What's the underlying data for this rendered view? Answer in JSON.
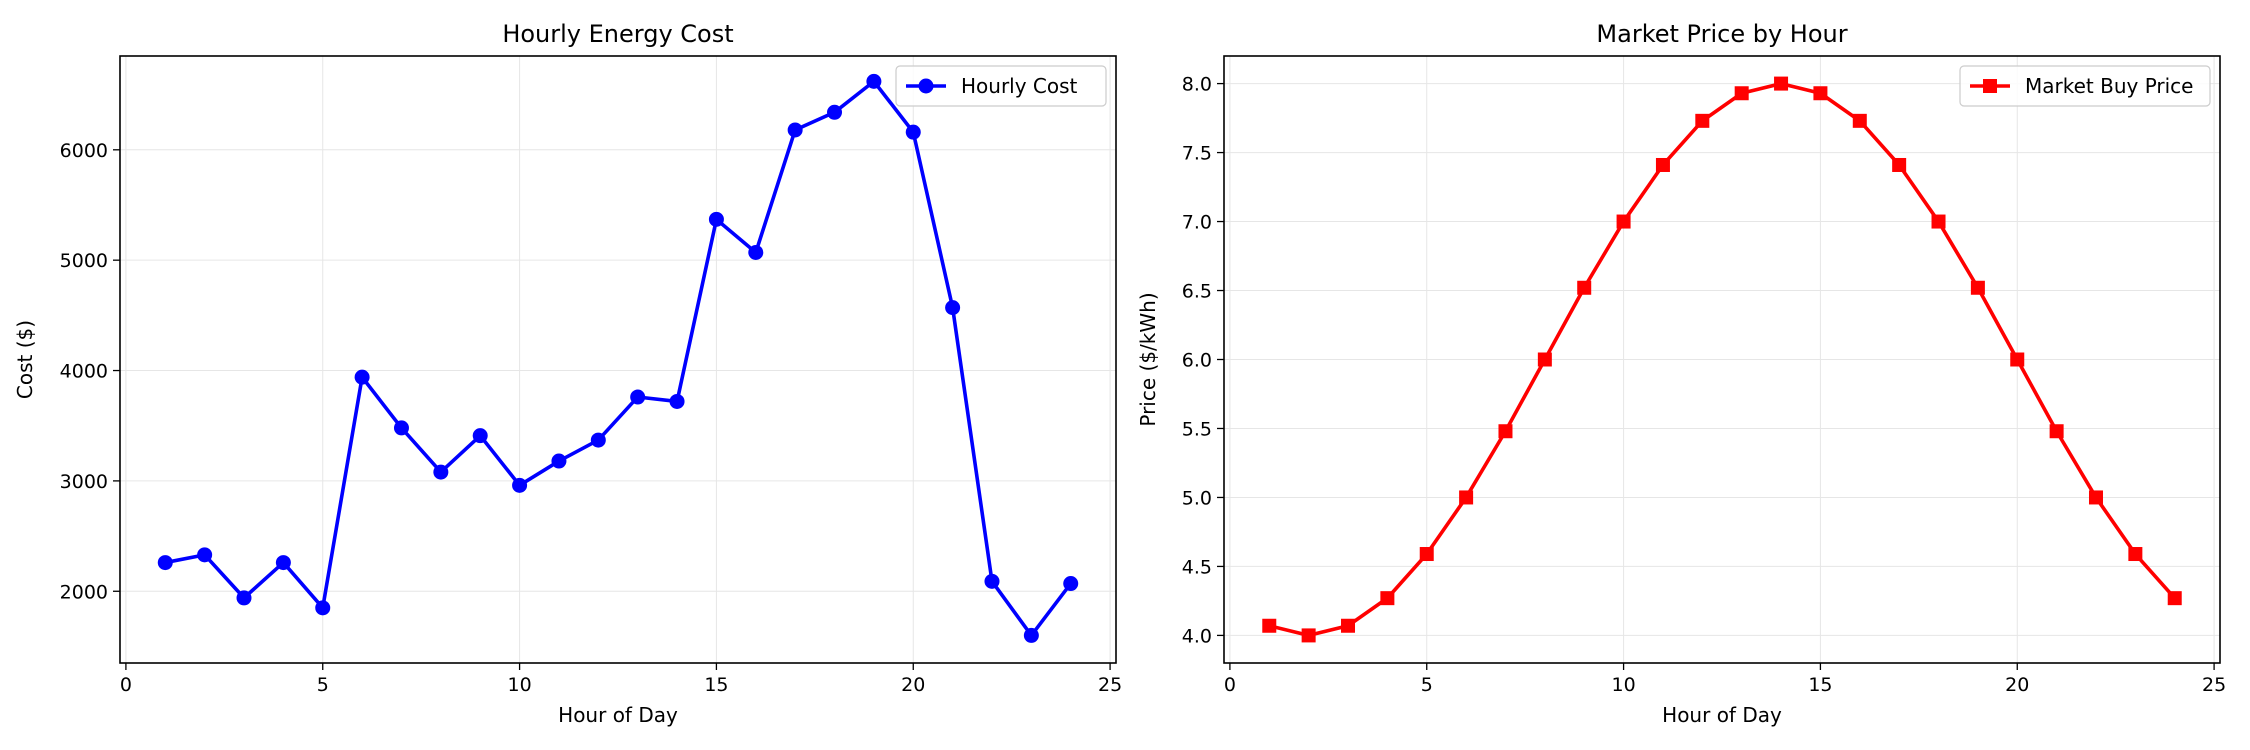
{
  "chart_data": [
    {
      "type": "line",
      "title": "Hourly Energy Cost",
      "xlabel": "Hour of Day",
      "ylabel": "Cost ($)",
      "xlim": [
        -0.15,
        25.15
      ],
      "ylim": [
        1350,
        6850
      ],
      "xticks": [
        0,
        5,
        10,
        15,
        20,
        25
      ],
      "yticks": [
        2000,
        3000,
        4000,
        5000,
        6000
      ],
      "grid": true,
      "legend_position": "top-right",
      "color": "#0000ff",
      "marker": "circle",
      "series": [
        {
          "name": "Hourly Cost",
          "x": [
            1,
            2,
            3,
            4,
            5,
            6,
            7,
            8,
            9,
            10,
            11,
            12,
            13,
            14,
            15,
            16,
            17,
            18,
            19,
            20,
            21,
            22,
            23,
            24
          ],
          "y": [
            2260,
            2330,
            1940,
            2260,
            1850,
            3940,
            3480,
            3080,
            3410,
            2960,
            3180,
            3370,
            3760,
            3720,
            5370,
            5070,
            6180,
            6340,
            6620,
            6160,
            4570,
            2090,
            1600,
            2070
          ]
        }
      ]
    },
    {
      "type": "line",
      "title": "Market Price by Hour",
      "xlabel": "Hour of Day",
      "ylabel": "Price ($/kWh)",
      "xlim": [
        -0.15,
        25.15
      ],
      "ylim": [
        3.8,
        8.2
      ],
      "xticks": [
        0,
        5,
        10,
        15,
        20,
        25
      ],
      "yticks": [
        4.0,
        4.5,
        5.0,
        5.5,
        6.0,
        6.5,
        7.0,
        7.5,
        8.0
      ],
      "grid": true,
      "legend_position": "top-right",
      "color": "#ff0000",
      "marker": "square",
      "series": [
        {
          "name": "Market Buy Price",
          "x": [
            1,
            2,
            3,
            4,
            5,
            6,
            7,
            8,
            9,
            10,
            11,
            12,
            13,
            14,
            15,
            16,
            17,
            18,
            19,
            20,
            21,
            22,
            23,
            24
          ],
          "y": [
            4.07,
            4.0,
            4.07,
            4.27,
            4.59,
            5.0,
            5.48,
            6.0,
            6.52,
            7.0,
            7.41,
            7.73,
            7.93,
            8.0,
            7.93,
            7.73,
            7.41,
            7.0,
            6.52,
            6.0,
            5.48,
            5.0,
            4.59,
            4.27
          ]
        }
      ]
    }
  ]
}
